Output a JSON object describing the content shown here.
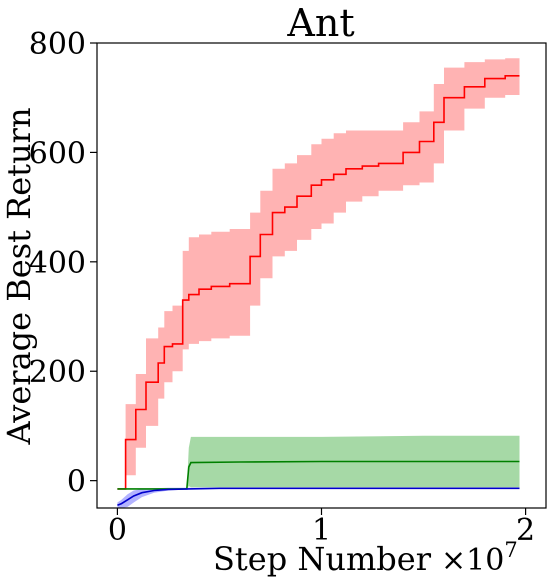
{
  "chart_data": {
    "type": "line",
    "title": "Ant",
    "xlabel": "Step Number",
    "ylabel": "Average Best Return",
    "x_multiplier_label": "×10",
    "x_multiplier_exponent": "7",
    "xlim": [
      -0.1,
      2.1
    ],
    "ylim": [
      -50,
      800
    ],
    "x_ticks": [
      0,
      1,
      2
    ],
    "x_tick_labels": [
      "0",
      "1",
      "2"
    ],
    "y_ticks": [
      0,
      200,
      400,
      600,
      800
    ],
    "y_tick_labels": [
      "0",
      "200",
      "400",
      "600",
      "800"
    ],
    "grid": false,
    "legend": "none",
    "series": [
      {
        "color": "#ff0000",
        "band_color": "#ff9999",
        "x": [
          0.0,
          0.04,
          0.04,
          0.09,
          0.09,
          0.14,
          0.14,
          0.2,
          0.2,
          0.23,
          0.23,
          0.27,
          0.27,
          0.32,
          0.32,
          0.35,
          0.35,
          0.4,
          0.4,
          0.46,
          0.46,
          0.55,
          0.55,
          0.65,
          0.65,
          0.7,
          0.7,
          0.76,
          0.76,
          0.82,
          0.82,
          0.88,
          0.88,
          0.95,
          0.95,
          1.0,
          1.0,
          1.06,
          1.06,
          1.12,
          1.12,
          1.2,
          1.2,
          1.28,
          1.28,
          1.4,
          1.4,
          1.48,
          1.48,
          1.55,
          1.55,
          1.6,
          1.6,
          1.7,
          1.7,
          1.8,
          1.8,
          1.9,
          1.9,
          1.97
        ],
        "y": [
          -15,
          -15,
          75,
          75,
          130,
          130,
          180,
          180,
          215,
          215,
          245,
          245,
          250,
          250,
          330,
          330,
          340,
          340,
          350,
          350,
          355,
          355,
          360,
          360,
          410,
          410,
          450,
          450,
          490,
          490,
          500,
          500,
          520,
          520,
          540,
          540,
          550,
          550,
          560,
          560,
          570,
          570,
          575,
          575,
          580,
          580,
          600,
          600,
          620,
          620,
          655,
          655,
          700,
          700,
          720,
          720,
          735,
          735,
          740,
          740
        ],
        "lower": [
          -15,
          -15,
          10,
          10,
          60,
          60,
          100,
          100,
          150,
          150,
          180,
          180,
          200,
          200,
          240,
          240,
          250,
          250,
          255,
          255,
          260,
          260,
          265,
          265,
          320,
          320,
          370,
          370,
          410,
          410,
          420,
          420,
          440,
          440,
          460,
          460,
          470,
          470,
          490,
          490,
          510,
          510,
          520,
          520,
          530,
          530,
          540,
          540,
          545,
          545,
          580,
          580,
          640,
          640,
          680,
          680,
          700,
          700,
          705,
          705
        ],
        "upper": [
          -15,
          -15,
          140,
          140,
          195,
          195,
          260,
          260,
          280,
          280,
          310,
          310,
          320,
          320,
          420,
          420,
          445,
          445,
          450,
          450,
          455,
          455,
          460,
          460,
          490,
          490,
          530,
          530,
          570,
          570,
          580,
          580,
          595,
          595,
          615,
          615,
          625,
          625,
          635,
          635,
          640,
          640,
          640,
          640,
          640,
          640,
          655,
          655,
          675,
          675,
          725,
          725,
          755,
          755,
          765,
          765,
          770,
          770,
          772,
          772
        ]
      },
      {
        "color": "#008000",
        "band_color": "#88cc88",
        "x": [
          0.0,
          0.34,
          0.35,
          0.36,
          0.6,
          1.0,
          1.5,
          1.97
        ],
        "y": [
          -15,
          -15,
          25,
          33,
          34,
          35,
          35,
          35
        ],
        "lower": [
          -15,
          -15,
          -10,
          -12,
          -12,
          -12,
          -12,
          -12
        ],
        "upper": [
          -15,
          -15,
          60,
          80,
          80,
          80,
          82,
          82
        ]
      },
      {
        "color": "#0000cc",
        "band_color": "#9999ff",
        "x": [
          0.0,
          0.02,
          0.05,
          0.08,
          0.12,
          0.18,
          0.25,
          0.35,
          0.5,
          1.0,
          1.5,
          1.97
        ],
        "y": [
          -45,
          -42,
          -35,
          -28,
          -22,
          -18,
          -16,
          -15,
          -14,
          -14,
          -14,
          -14
        ],
        "lower": [
          -50,
          -50,
          -48,
          -40,
          -30,
          -22,
          -18,
          -16,
          -15,
          -15,
          -15,
          -15
        ],
        "upper": [
          -40,
          -35,
          -25,
          -18,
          -15,
          -14,
          -13,
          -13,
          -13,
          -13,
          -13,
          -13
        ]
      }
    ]
  }
}
